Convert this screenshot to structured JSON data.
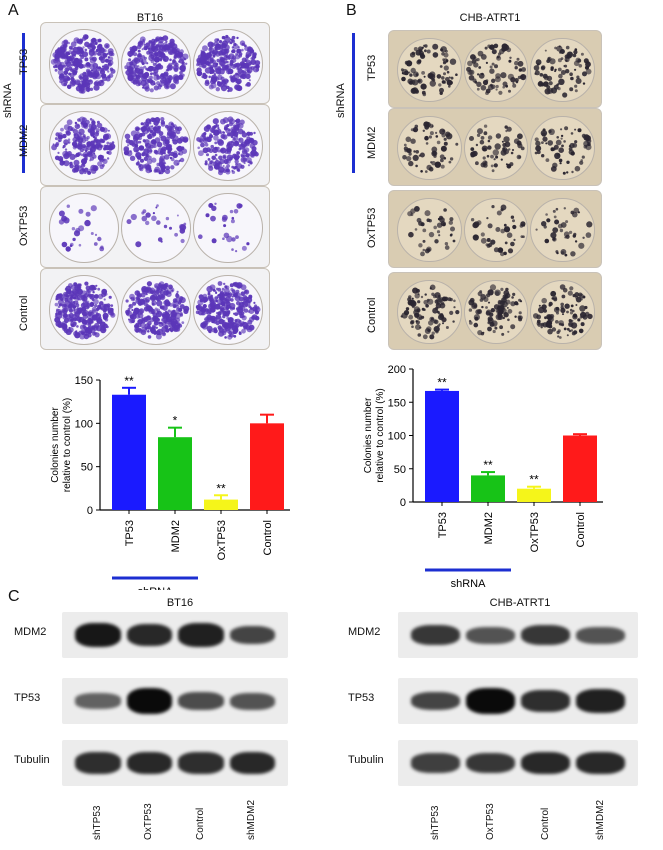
{
  "panels": {
    "a": {
      "letter": "A",
      "title": "BT16",
      "group_label": "shRNA",
      "rows": [
        "TP53",
        "MDM2",
        "OxTP53",
        "Control"
      ],
      "well_color": "#5b36b8",
      "plate_color": "#f2f2f4"
    },
    "b": {
      "letter": "B",
      "title": "CHB-ATRT1",
      "group_label": "shRNA",
      "rows": [
        "TP53",
        "MDM2",
        "OxTP53",
        "Control"
      ],
      "well_color": "#2a2530",
      "plate_color": "#d9ccb2"
    },
    "c": {
      "letter": "C",
      "left": {
        "title": "BT16",
        "rows": [
          "MDM2",
          "TP53",
          "Tubulin"
        ],
        "lanes": [
          "shTP53",
          "OxTP53",
          "Control",
          "shMDM2"
        ]
      },
      "right": {
        "title": "CHB-ATRT1",
        "rows": [
          "MDM2",
          "TP53",
          "Tubulin"
        ],
        "lanes": [
          "shTP53",
          "OxTP53",
          "Control",
          "shMDM2"
        ]
      }
    }
  },
  "chart_data": [
    {
      "type": "bar",
      "panel": "A",
      "categories": [
        "TP53",
        "MDM2",
        "OxTP53",
        "Control"
      ],
      "values": [
        133,
        84,
        12,
        100
      ],
      "errors": [
        8,
        11,
        5,
        10
      ],
      "significance": [
        "**",
        "*",
        "**",
        ""
      ],
      "colors": [
        "#1a1aff",
        "#17c317",
        "#f5f51a",
        "#ff1a1a"
      ],
      "ylabel": "Colonies number relative to control (%)",
      "ylabel_lines": [
        "Colonies number",
        "relative to control (%)"
      ],
      "yticks": [
        0,
        50,
        100,
        150
      ],
      "ylim": [
        0,
        150
      ],
      "group_label": "shRNA"
    },
    {
      "type": "bar",
      "panel": "B",
      "categories": [
        "TP53",
        "MDM2",
        "OxTP53",
        "Control"
      ],
      "values": [
        167,
        40,
        20,
        100
      ],
      "errors": [
        2,
        5,
        3,
        2
      ],
      "significance": [
        "**",
        "**",
        "**",
        ""
      ],
      "colors": [
        "#1a1aff",
        "#17c317",
        "#f5f51a",
        "#ff1a1a"
      ],
      "ylabel": "Colonies number relative to control (%)",
      "ylabel_lines": [
        "Colonies number",
        "relative to control (%)"
      ],
      "yticks": [
        0,
        50,
        100,
        150,
        200
      ],
      "ylim": [
        0,
        200
      ],
      "group_label": "shRNA"
    }
  ]
}
